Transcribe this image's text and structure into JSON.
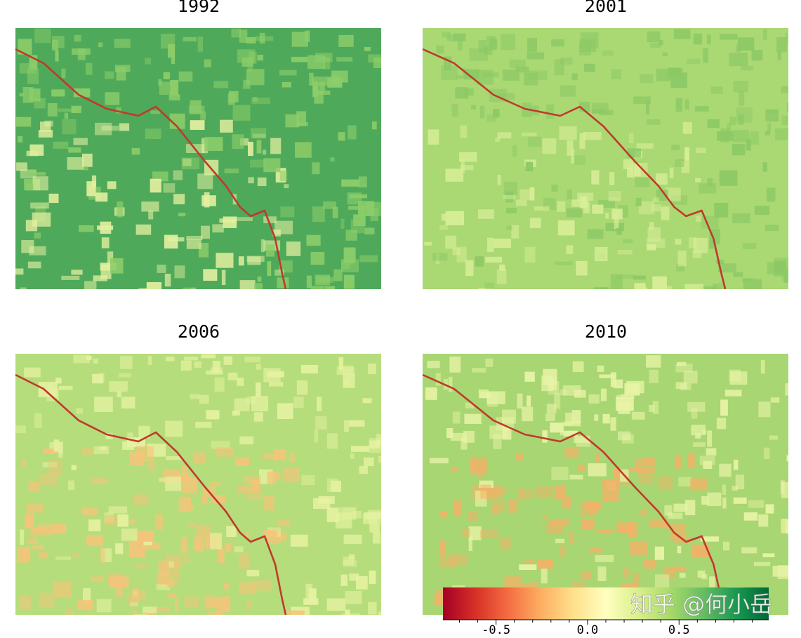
{
  "panels": [
    {
      "title": "1992"
    },
    {
      "title": "2001"
    },
    {
      "title": "2006"
    },
    {
      "title": "2010"
    }
  ],
  "colorbar": {
    "lim": [
      -0.79,
      0.99
    ],
    "ticks": [
      -0.5,
      {
        "value": 0,
        "label": "0.0"
      },
      0.5
    ],
    "minor_ticks": [
      -0.7,
      -0.6,
      -0.4,
      -0.3,
      -0.2,
      -0.1,
      0.1,
      0.2,
      0.3,
      0.4,
      0.6,
      0.7,
      0.8,
      0.9
    ]
  },
  "watermark": "知乎 @何小岳"
}
